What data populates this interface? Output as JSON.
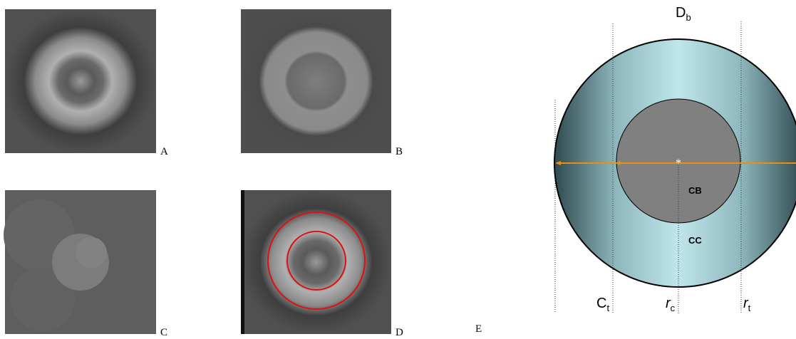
{
  "panels": [
    {
      "label": "A"
    },
    {
      "label": "B"
    },
    {
      "label": "C"
    },
    {
      "label": "D"
    }
  ],
  "diagram": {
    "label": "E",
    "diameter": {
      "symbol": "D",
      "subscript": "b"
    },
    "core_label": "CB",
    "shell_label": "CC",
    "dimensions": [
      {
        "symbol": "C",
        "subscript": "t"
      },
      {
        "symbol": "r",
        "subscript": "c"
      },
      {
        "symbol": "r",
        "subscript": "t"
      }
    ]
  }
}
